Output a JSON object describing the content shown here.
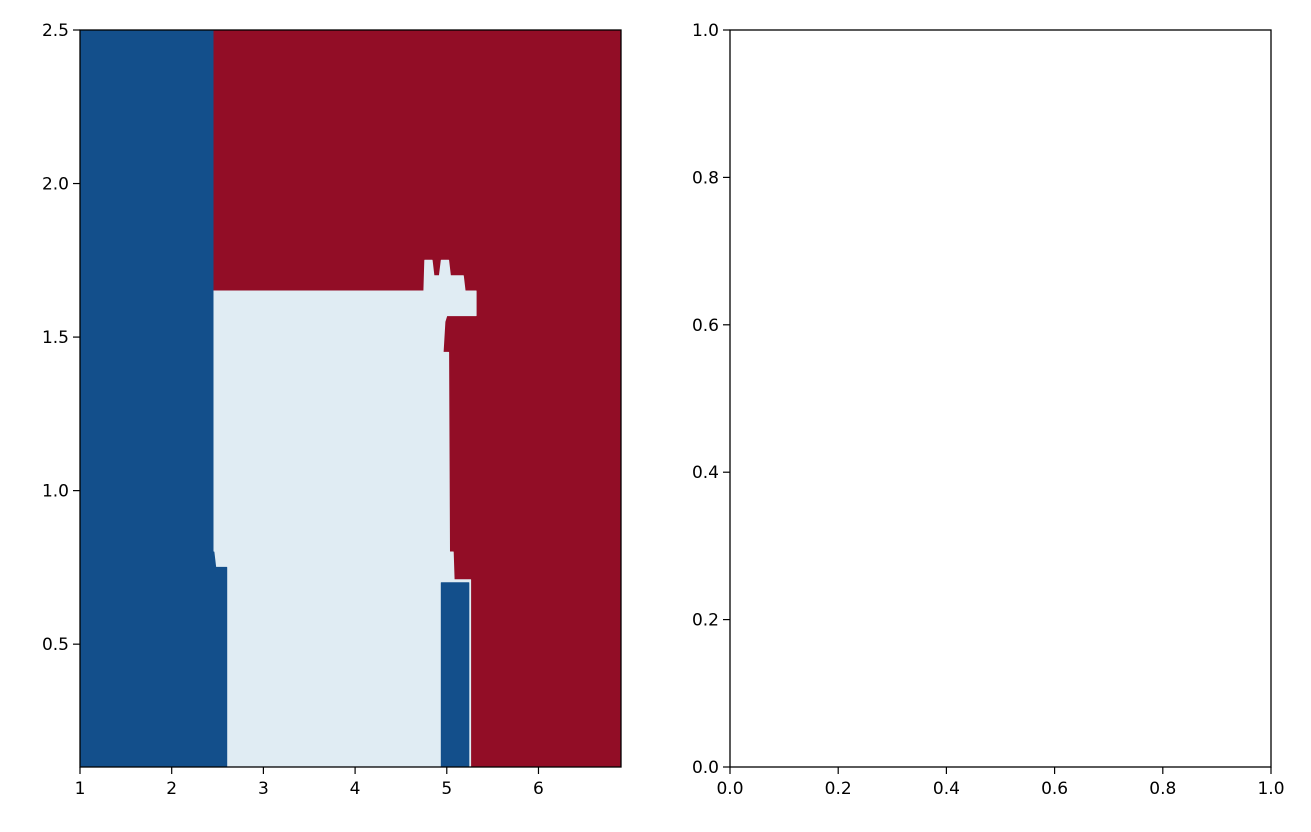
{
  "chart_data": [
    {
      "type": "heatmap",
      "title": "",
      "xlabel": "",
      "ylabel": "",
      "xlim": [
        1,
        6.9
      ],
      "ylim": [
        0.1,
        2.5
      ],
      "grid": false,
      "xticks": [
        1,
        2,
        3,
        4,
        5,
        6
      ],
      "xtick_labels": [
        "1",
        "2",
        "3",
        "4",
        "5",
        "6"
      ],
      "yticks": [
        0.5,
        1.0,
        1.5,
        2.0,
        2.5
      ],
      "ytick_labels": [
        "0.5",
        "1.0",
        "1.5",
        "2.0",
        "2.5"
      ],
      "colors": {
        "class_0": "#134f8b",
        "class_1": "#e0ecf3",
        "class_2": "#920d26"
      },
      "regions": [
        {
          "class": "class_1",
          "polygon": [
            [
              2.45,
              1.65
            ],
            [
              4.75,
              1.65
            ],
            [
              4.76,
              1.75
            ],
            [
              4.84,
              1.75
            ],
            [
              4.86,
              1.7
            ],
            [
              4.92,
              1.7
            ],
            [
              4.94,
              1.75
            ],
            [
              5.02,
              1.75
            ],
            [
              5.04,
              1.7
            ],
            [
              5.18,
              1.7
            ],
            [
              5.2,
              1.65
            ],
            [
              5.32,
              1.65
            ],
            [
              5.32,
              1.57
            ],
            [
              5.0,
              1.57
            ],
            [
              4.98,
              1.55
            ],
            [
              4.96,
              1.45
            ],
            [
              5.02,
              1.45
            ],
            [
              5.03,
              0.8
            ],
            [
              5.07,
              0.8
            ],
            [
              5.08,
              0.71
            ],
            [
              5.26,
              0.71
            ],
            [
              5.26,
              0.1
            ],
            [
              2.6,
              0.1
            ],
            [
              2.6,
              0.75
            ],
            [
              2.48,
              0.75
            ],
            [
              2.46,
              0.8
            ],
            [
              2.45,
              0.8
            ]
          ]
        },
        {
          "class": "class_0",
          "polygon": [
            [
              4.94,
              0.1
            ],
            [
              5.24,
              0.1
            ],
            [
              5.24,
              0.7
            ],
            [
              4.94,
              0.7
            ]
          ]
        },
        {
          "class": "class_0",
          "polygon": [
            [
              1,
              0.1
            ],
            [
              2.6,
              0.1
            ],
            [
              2.6,
              0.75
            ],
            [
              2.48,
              0.75
            ],
            [
              2.46,
              0.8
            ],
            [
              2.45,
              0.8
            ],
            [
              2.45,
              2.5
            ],
            [
              1,
              2.5
            ]
          ]
        }
      ],
      "background_class": "class_2"
    },
    {
      "type": "scatter",
      "title": "",
      "xlabel": "",
      "ylabel": "",
      "xlim": [
        0,
        1
      ],
      "ylim": [
        0,
        1
      ],
      "grid": false,
      "xticks": [
        0,
        0.2,
        0.4,
        0.6,
        0.8,
        1.0
      ],
      "xtick_labels": [
        "0.0",
        "0.2",
        "0.4",
        "0.6",
        "0.8",
        "1.0"
      ],
      "yticks": [
        0,
        0.2,
        0.4,
        0.6,
        0.8,
        1.0
      ],
      "ytick_labels": [
        "0.0",
        "0.2",
        "0.4",
        "0.6",
        "0.8",
        "1.0"
      ],
      "points": []
    }
  ]
}
